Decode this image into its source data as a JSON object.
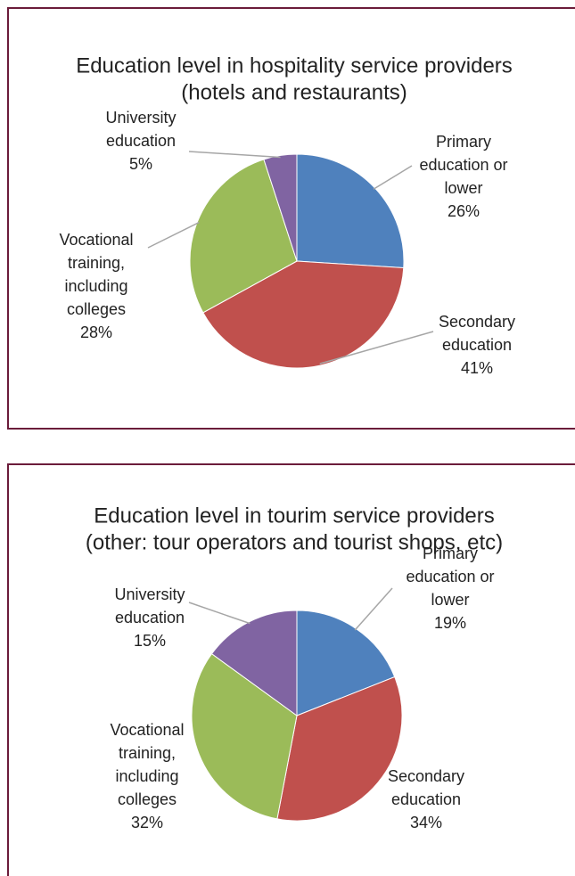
{
  "chart_data": [
    {
      "type": "pie",
      "title": "Education level in hospitality service providers",
      "subtitle": "(hotels and restaurants)",
      "categories": [
        "Primary education or lower",
        "Secondary education",
        "Vocational training, including colleges",
        "University education"
      ],
      "values": [
        26,
        41,
        28,
        5
      ],
      "value_labels": [
        "26%",
        "41%",
        "28%",
        "5%"
      ],
      "colors": [
        "#4f81bd",
        "#c0504d",
        "#9bbb59",
        "#8064a2"
      ]
    },
    {
      "type": "pie",
      "title": "Education level in tourim service providers",
      "subtitle": "(other: tour operators and tourist shops, etc)",
      "categories": [
        "Primary education or lower",
        "Secondary education",
        "Vocational training, including colleges",
        "University education"
      ],
      "values": [
        19,
        34,
        32,
        15
      ],
      "value_labels": [
        "19%",
        "34%",
        "32%",
        "15%"
      ],
      "colors": [
        "#4f81bd",
        "#c0504d",
        "#9bbb59",
        "#8064a2"
      ]
    }
  ]
}
